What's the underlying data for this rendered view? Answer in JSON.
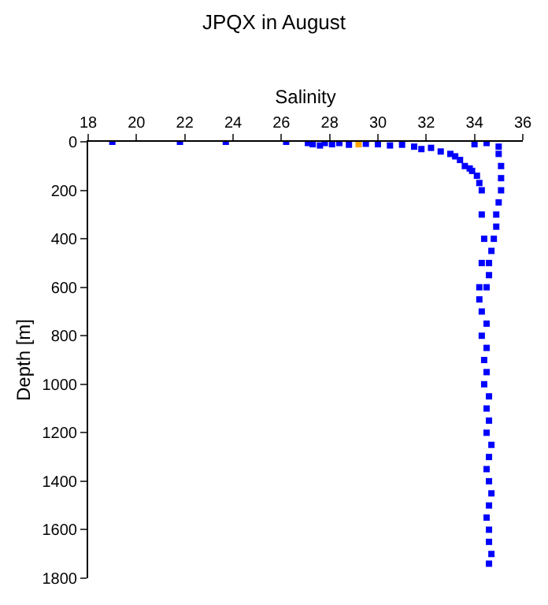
{
  "chart_data": {
    "type": "scatter",
    "title": "JPQX in August",
    "xlabel": "Salinity",
    "ylabel": "Depth [m]",
    "xlim": [
      18,
      36
    ],
    "xticks": [
      18,
      20,
      22,
      24,
      26,
      28,
      30,
      32,
      34,
      36
    ],
    "ylim": [
      1800,
      0
    ],
    "yticks": [
      0,
      200,
      400,
      600,
      800,
      1000,
      1200,
      1400,
      1600,
      1800
    ],
    "marker": "square",
    "series": [
      {
        "color": "#0000ff",
        "x": [
          19.0,
          21.8,
          23.7,
          26.2,
          27.1,
          27.3,
          27.6,
          27.8,
          28.1,
          28.4,
          28.8,
          29.5,
          30.0,
          30.5,
          31.0,
          31.5,
          31.8,
          32.2,
          32.6,
          33.0,
          33.2,
          33.4,
          33.6,
          33.8,
          33.9,
          34.1,
          34.2,
          34.0,
          34.5,
          35.0,
          35.0,
          35.1,
          35.1,
          35.1,
          35.0,
          34.9,
          34.9,
          34.8,
          34.7,
          34.6,
          34.6,
          34.5,
          34.2,
          34.3,
          34.3,
          34.4,
          34.3,
          34.2,
          34.3,
          34.5,
          34.3,
          34.5,
          34.4,
          34.5,
          34.4,
          34.6,
          34.5,
          34.6,
          34.5,
          34.7,
          34.6,
          34.5,
          34.6,
          34.7,
          34.6,
          34.5,
          34.6,
          34.6,
          34.7,
          34.6
        ],
        "values": [
          0,
          0,
          0,
          0,
          5,
          10,
          15,
          5,
          10,
          5,
          12,
          8,
          10,
          15,
          12,
          20,
          30,
          25,
          40,
          50,
          60,
          75,
          100,
          110,
          120,
          140,
          170,
          10,
          5,
          20,
          50,
          100,
          150,
          200,
          250,
          300,
          350,
          400,
          450,
          500,
          550,
          600,
          600,
          200,
          300,
          400,
          500,
          650,
          700,
          750,
          800,
          850,
          900,
          950,
          1000,
          1050,
          1100,
          1150,
          1200,
          1250,
          1300,
          1350,
          1400,
          1450,
          1500,
          1550,
          1600,
          1650,
          1700,
          1740
        ]
      },
      {
        "color": "#ffa500",
        "x": [
          29.2
        ],
        "values": [
          10
        ]
      }
    ]
  }
}
